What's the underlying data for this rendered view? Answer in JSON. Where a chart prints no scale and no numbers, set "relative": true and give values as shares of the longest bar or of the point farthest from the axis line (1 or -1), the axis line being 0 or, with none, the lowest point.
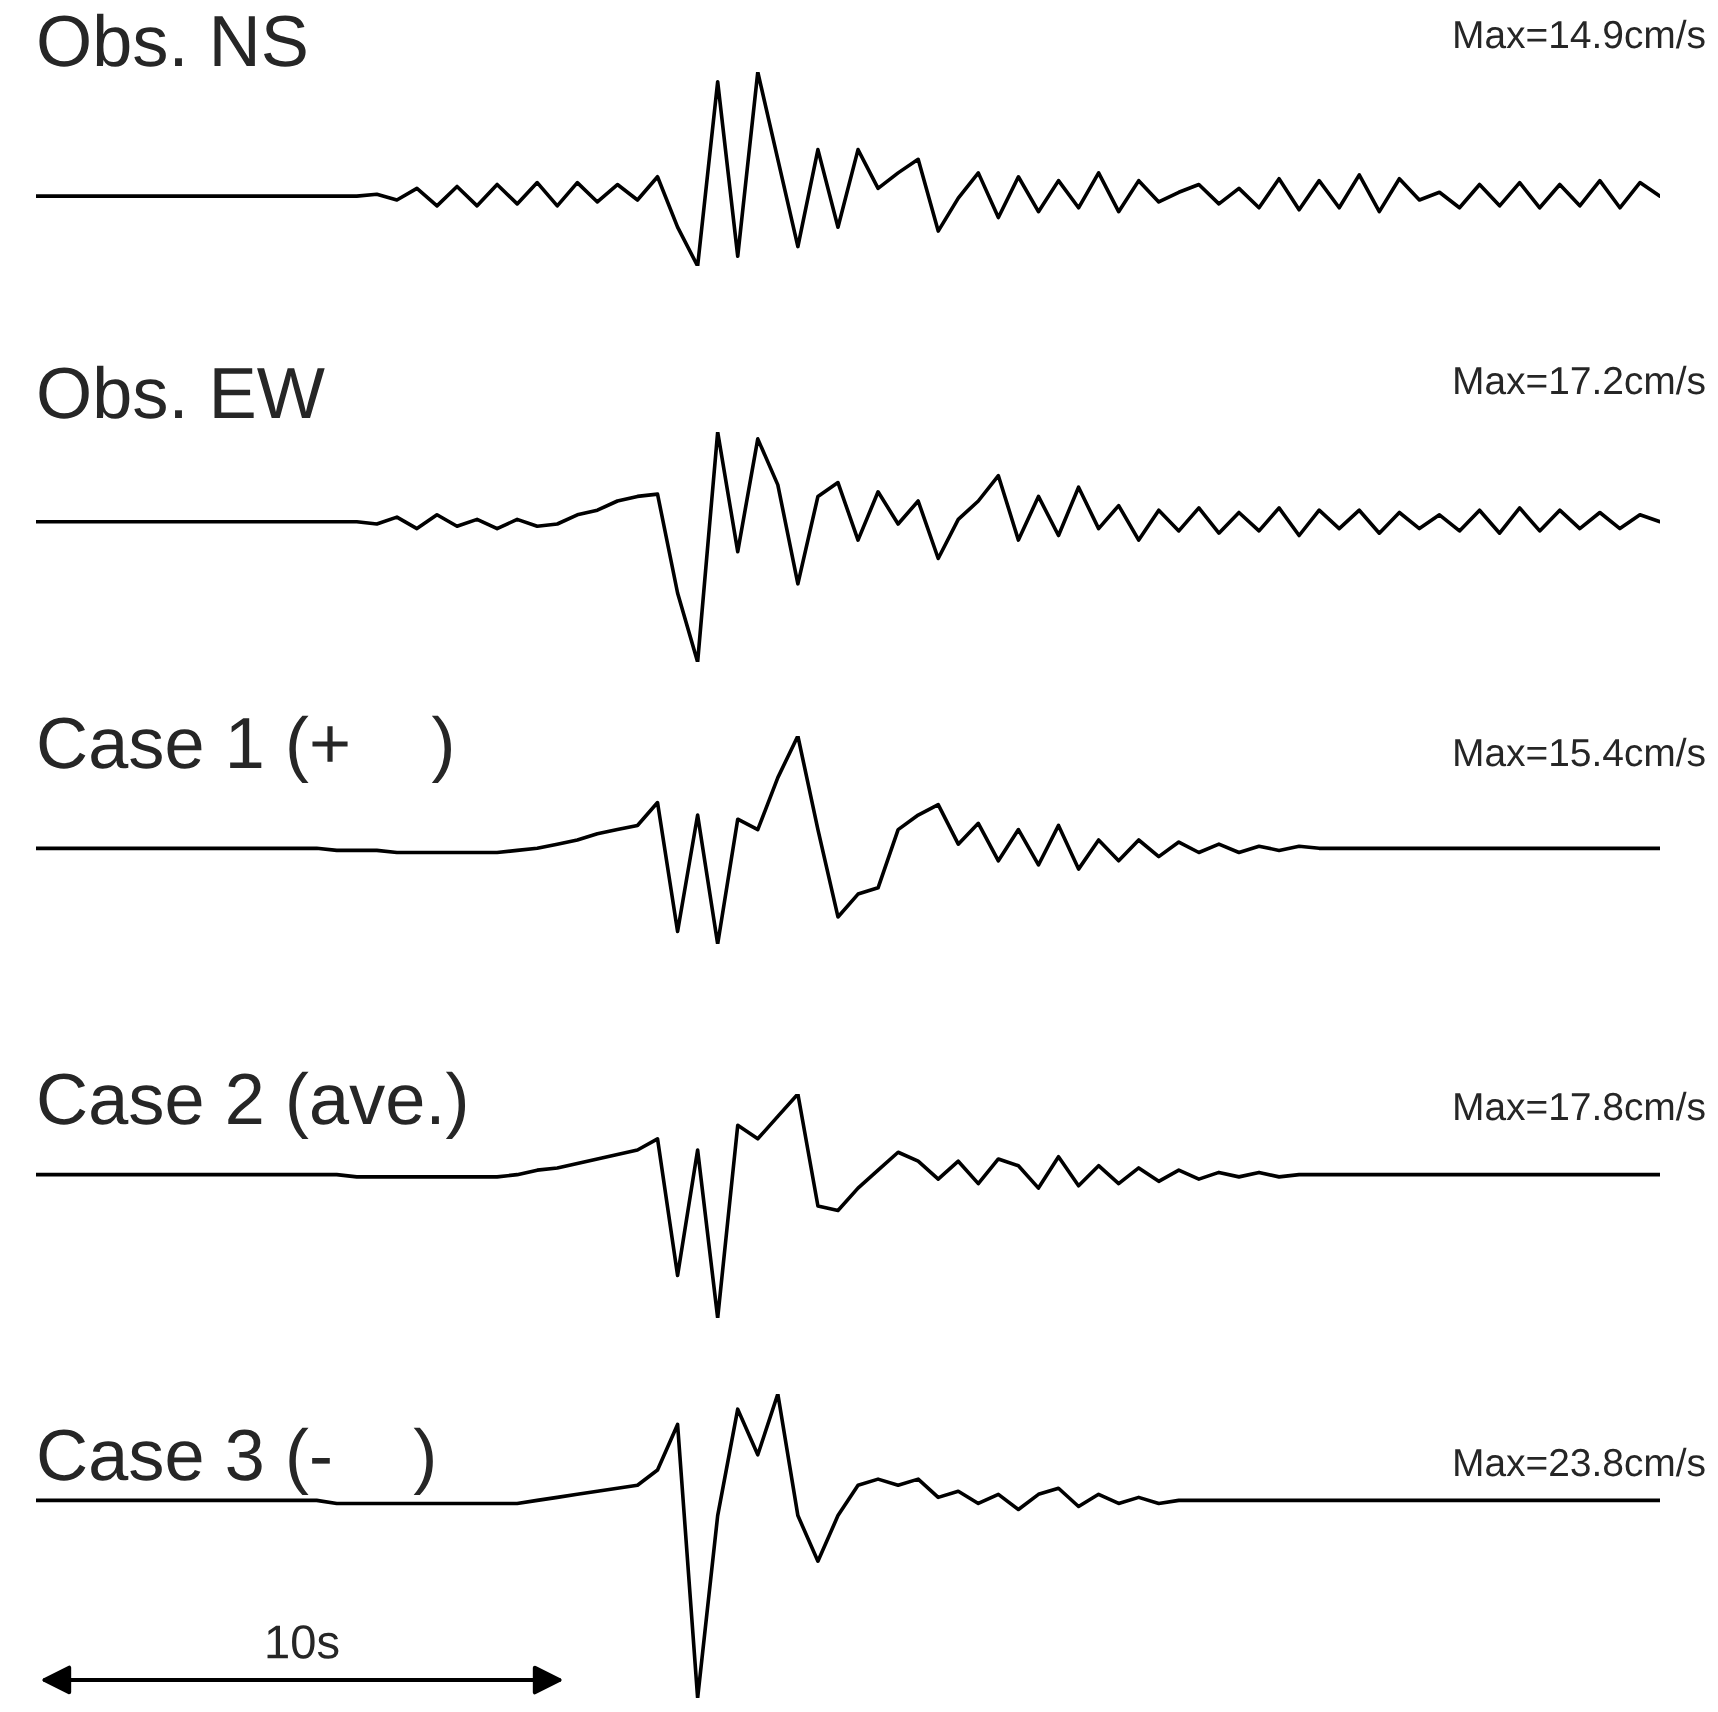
{
  "chart_data": [
    {
      "type": "line",
      "title": "Obs. NS",
      "relative": true,
      "annotations": [
        "Max=14.9cm/s"
      ],
      "categories": [
        null,
        null,
        null,
        null,
        null,
        null,
        null,
        null,
        null,
        null,
        null,
        null,
        null,
        null,
        null,
        null,
        null,
        null,
        null,
        null,
        null,
        null,
        null,
        null,
        null,
        null,
        null,
        null,
        null,
        null,
        null,
        null,
        null,
        null,
        null,
        null,
        null,
        null,
        null,
        null,
        null,
        null,
        null,
        null,
        null,
        null,
        null,
        null,
        null,
        null,
        null,
        null,
        null,
        null,
        null,
        null,
        null,
        null,
        null,
        null,
        null,
        null,
        null,
        null,
        null,
        null,
        null,
        null,
        null,
        null,
        null,
        null,
        null,
        null,
        null,
        null,
        null,
        null,
        null,
        null,
        null,
        null
      ],
      "series": [
        {
          "color": "#000000",
          "values": [
            0.36,
            0.36,
            0.36,
            0.36,
            0.36,
            0.36,
            0.36,
            0.36,
            0.36,
            0.36,
            0.36,
            0.36,
            0.36,
            0.36,
            0.36,
            0.36,
            0.36,
            0.37,
            0.34,
            0.4,
            0.31,
            0.41,
            0.31,
            0.42,
            0.32,
            0.43,
            0.31,
            0.43,
            0.33,
            0.42,
            0.34,
            0.46,
            0.2,
            0.0,
            0.95,
            0.05,
            1.0,
            0.55,
            0.1,
            0.6,
            0.2,
            0.6,
            0.4,
            0.48,
            0.55,
            0.18,
            0.35,
            0.48,
            0.25,
            0.46,
            0.28,
            0.44,
            0.3,
            0.48,
            0.28,
            0.44,
            0.33,
            0.38,
            0.42,
            0.32,
            0.4,
            0.3,
            0.45,
            0.29,
            0.44,
            0.3,
            0.47,
            0.28,
            0.45,
            0.34,
            0.38,
            0.3,
            0.42,
            0.31,
            0.43,
            0.3,
            0.42,
            0.31,
            0.44,
            0.3,
            0.43,
            0.36
          ]
        }
      ]
    },
    {
      "type": "line",
      "title": "Obs. EW",
      "relative": true,
      "annotations": [
        "Max=17.2cm/s"
      ],
      "categories": [
        null,
        null,
        null,
        null,
        null,
        null,
        null,
        null,
        null,
        null,
        null,
        null,
        null,
        null,
        null,
        null,
        null,
        null,
        null,
        null,
        null,
        null,
        null,
        null,
        null,
        null,
        null,
        null,
        null,
        null,
        null,
        null,
        null,
        null,
        null,
        null,
        null,
        null,
        null,
        null,
        null,
        null,
        null,
        null,
        null,
        null,
        null,
        null,
        null,
        null,
        null,
        null,
        null,
        null,
        null,
        null,
        null,
        null,
        null,
        null,
        null,
        null,
        null,
        null,
        null,
        null,
        null,
        null,
        null,
        null,
        null,
        null,
        null,
        null,
        null,
        null,
        null,
        null,
        null,
        null,
        null,
        null
      ],
      "series": [
        {
          "color": "#000000",
          "values": [
            0.61,
            0.61,
            0.61,
            0.61,
            0.61,
            0.61,
            0.61,
            0.61,
            0.61,
            0.61,
            0.61,
            0.61,
            0.61,
            0.61,
            0.61,
            0.61,
            0.61,
            0.6,
            0.63,
            0.58,
            0.64,
            0.59,
            0.62,
            0.58,
            0.62,
            0.59,
            0.6,
            0.64,
            0.66,
            0.7,
            0.72,
            0.73,
            0.3,
            0.0,
            1.0,
            0.48,
            0.97,
            0.77,
            0.34,
            0.72,
            0.78,
            0.53,
            0.74,
            0.6,
            0.7,
            0.45,
            0.62,
            0.7,
            0.81,
            0.53,
            0.72,
            0.55,
            0.76,
            0.58,
            0.68,
            0.53,
            0.66,
            0.57,
            0.67,
            0.56,
            0.65,
            0.57,
            0.67,
            0.55,
            0.66,
            0.58,
            0.66,
            0.56,
            0.65,
            0.58,
            0.64,
            0.57,
            0.66,
            0.56,
            0.67,
            0.57,
            0.66,
            0.58,
            0.65,
            0.58,
            0.64,
            0.61
          ]
        }
      ]
    },
    {
      "type": "line",
      "title": "Case 1 (+    )",
      "relative": true,
      "annotations": [
        "Max=15.4cm/s"
      ],
      "categories": [
        null,
        null,
        null,
        null,
        null,
        null,
        null,
        null,
        null,
        null,
        null,
        null,
        null,
        null,
        null,
        null,
        null,
        null,
        null,
        null,
        null,
        null,
        null,
        null,
        null,
        null,
        null,
        null,
        null,
        null,
        null,
        null,
        null,
        null,
        null,
        null,
        null,
        null,
        null,
        null,
        null,
        null,
        null,
        null,
        null,
        null,
        null,
        null,
        null,
        null,
        null,
        null,
        null,
        null,
        null,
        null,
        null,
        null,
        null,
        null,
        null,
        null,
        null,
        null,
        null,
        null,
        null,
        null,
        null,
        null,
        null,
        null,
        null,
        null,
        null,
        null,
        null,
        null,
        null,
        null,
        null,
        null
      ],
      "series": [
        {
          "color": "#000000",
          "values": [
            0.46,
            0.46,
            0.46,
            0.46,
            0.46,
            0.46,
            0.46,
            0.46,
            0.46,
            0.46,
            0.46,
            0.46,
            0.46,
            0.46,
            0.46,
            0.45,
            0.45,
            0.45,
            0.44,
            0.44,
            0.44,
            0.44,
            0.44,
            0.44,
            0.45,
            0.46,
            0.48,
            0.5,
            0.53,
            0.55,
            0.57,
            0.68,
            0.06,
            0.62,
            0.0,
            0.6,
            0.55,
            0.8,
            1.0,
            0.55,
            0.13,
            0.24,
            0.27,
            0.55,
            0.62,
            0.67,
            0.48,
            0.58,
            0.4,
            0.55,
            0.38,
            0.57,
            0.36,
            0.5,
            0.4,
            0.5,
            0.42,
            0.49,
            0.44,
            0.48,
            0.44,
            0.47,
            0.45,
            0.47,
            0.46,
            0.46,
            0.46,
            0.46,
            0.46,
            0.46,
            0.46,
            0.46,
            0.46,
            0.46,
            0.46,
            0.46,
            0.46,
            0.46,
            0.46,
            0.46,
            0.46,
            0.46
          ]
        }
      ]
    },
    {
      "type": "line",
      "title": "Case 2 (ave.)",
      "relative": true,
      "annotations": [
        "Max=17.8cm/s"
      ],
      "categories": [
        null,
        null,
        null,
        null,
        null,
        null,
        null,
        null,
        null,
        null,
        null,
        null,
        null,
        null,
        null,
        null,
        null,
        null,
        null,
        null,
        null,
        null,
        null,
        null,
        null,
        null,
        null,
        null,
        null,
        null,
        null,
        null,
        null,
        null,
        null,
        null,
        null,
        null,
        null,
        null,
        null,
        null,
        null,
        null,
        null,
        null,
        null,
        null,
        null,
        null,
        null,
        null,
        null,
        null,
        null,
        null,
        null,
        null,
        null,
        null,
        null,
        null,
        null,
        null,
        null,
        null,
        null,
        null,
        null,
        null,
        null,
        null,
        null,
        null,
        null,
        null,
        null,
        null,
        null,
        null,
        null,
        null
      ],
      "series": [
        {
          "color": "#000000",
          "values": [
            0.64,
            0.64,
            0.64,
            0.64,
            0.64,
            0.64,
            0.64,
            0.64,
            0.64,
            0.64,
            0.64,
            0.64,
            0.64,
            0.64,
            0.64,
            0.64,
            0.63,
            0.63,
            0.63,
            0.63,
            0.63,
            0.63,
            0.63,
            0.63,
            0.64,
            0.66,
            0.67,
            0.69,
            0.71,
            0.73,
            0.75,
            0.8,
            0.19,
            0.75,
            0.0,
            0.86,
            0.8,
            0.9,
            1.0,
            0.5,
            0.48,
            0.58,
            0.66,
            0.74,
            0.7,
            0.62,
            0.7,
            0.6,
            0.71,
            0.68,
            0.58,
            0.72,
            0.59,
            0.68,
            0.6,
            0.67,
            0.61,
            0.66,
            0.62,
            0.65,
            0.63,
            0.65,
            0.63,
            0.64,
            0.64,
            0.64,
            0.64,
            0.64,
            0.64,
            0.64,
            0.64,
            0.64,
            0.64,
            0.64,
            0.64,
            0.64,
            0.64,
            0.64,
            0.64,
            0.64,
            0.64,
            0.64
          ]
        }
      ]
    },
    {
      "type": "line",
      "title": "Case 3 (-    )",
      "relative": true,
      "annotations": [
        "Max=23.8cm/s",
        "10s"
      ],
      "categories": [
        null,
        null,
        null,
        null,
        null,
        null,
        null,
        null,
        null,
        null,
        null,
        null,
        null,
        null,
        null,
        null,
        null,
        null,
        null,
        null,
        null,
        null,
        null,
        null,
        null,
        null,
        null,
        null,
        null,
        null,
        null,
        null,
        null,
        null,
        null,
        null,
        null,
        null,
        null,
        null,
        null,
        null,
        null,
        null,
        null,
        null,
        null,
        null,
        null,
        null,
        null,
        null,
        null,
        null,
        null,
        null,
        null,
        null,
        null,
        null,
        null,
        null,
        null,
        null,
        null,
        null,
        null,
        null,
        null,
        null,
        null,
        null,
        null,
        null,
        null,
        null,
        null,
        null,
        null,
        null,
        null,
        null
      ],
      "series": [
        {
          "color": "#000000",
          "values": [
            0.65,
            0.65,
            0.65,
            0.65,
            0.65,
            0.65,
            0.65,
            0.65,
            0.65,
            0.65,
            0.65,
            0.65,
            0.65,
            0.65,
            0.65,
            0.64,
            0.64,
            0.64,
            0.64,
            0.64,
            0.64,
            0.64,
            0.64,
            0.64,
            0.64,
            0.65,
            0.66,
            0.67,
            0.68,
            0.69,
            0.7,
            0.75,
            0.9,
            0.0,
            0.6,
            0.95,
            0.8,
            1.0,
            0.6,
            0.45,
            0.6,
            0.7,
            0.72,
            0.7,
            0.72,
            0.66,
            0.68,
            0.64,
            0.67,
            0.62,
            0.67,
            0.69,
            0.63,
            0.67,
            0.64,
            0.66,
            0.64,
            0.65,
            0.65,
            0.65,
            0.65,
            0.65,
            0.65,
            0.65,
            0.65,
            0.65,
            0.65,
            0.65,
            0.65,
            0.65,
            0.65,
            0.65,
            0.65,
            0.65,
            0.65,
            0.65,
            0.65,
            0.65,
            0.65,
            0.65,
            0.65,
            0.65
          ]
        }
      ]
    }
  ]
}
